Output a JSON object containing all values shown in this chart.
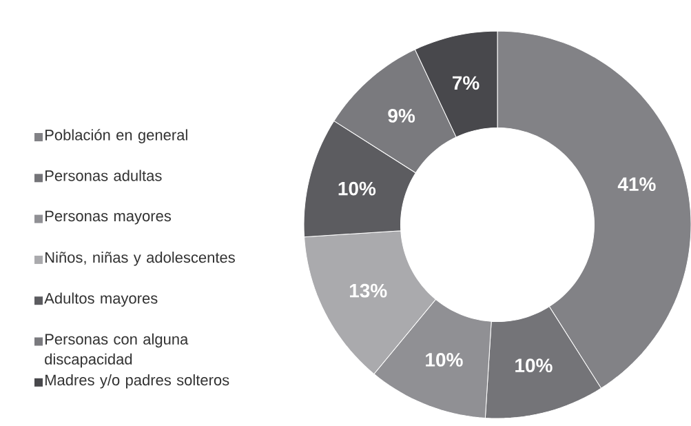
{
  "chart_data": {
    "type": "donut",
    "categories": [
      "Población en general",
      "Personas adultas",
      "Personas mayores",
      "Niños, niñas y adolescentes",
      "Adultos mayores",
      "Personas con alguna discapacidad",
      "Madres y/o padres solteros"
    ],
    "values": [
      41,
      10,
      10,
      13,
      10,
      9,
      7
    ],
    "value_labels": [
      "41%",
      "10%",
      "10%",
      "13%",
      "10%",
      "9%",
      "7%"
    ],
    "colors": [
      "#828286",
      "#747478",
      "#909094",
      "#aaaaad",
      "#5c5c60",
      "#7a7a7e",
      "#48484c"
    ],
    "legend": "left"
  }
}
